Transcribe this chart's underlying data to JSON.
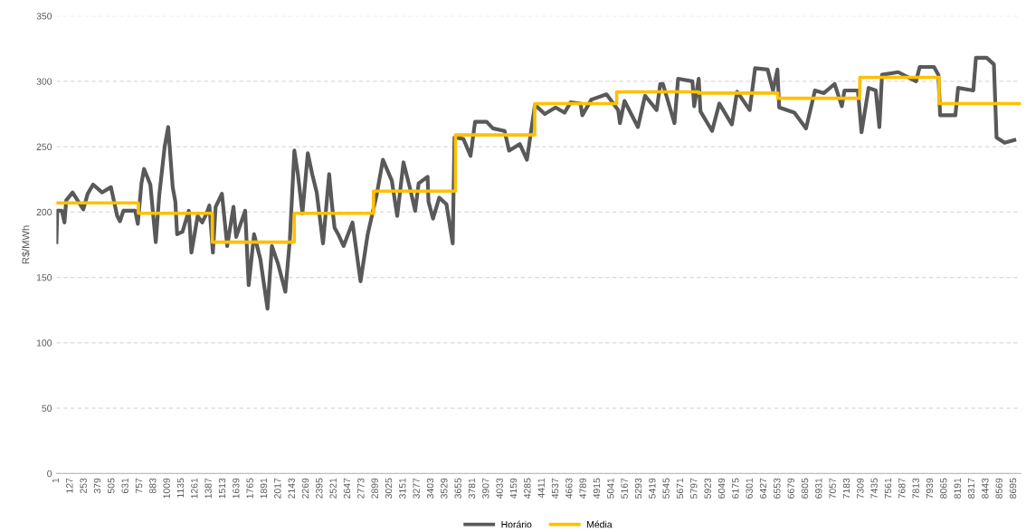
{
  "chart_data": {
    "type": "line",
    "ylabel": "R$/MWh",
    "xlim": [
      1,
      8760
    ],
    "ylim": [
      0,
      350
    ],
    "yticks": [
      0,
      50,
      100,
      150,
      200,
      250,
      300,
      350
    ],
    "xticks": [
      1,
      127,
      253,
      379,
      505,
      631,
      757,
      883,
      1009,
      1135,
      1261,
      1387,
      1513,
      1639,
      1765,
      1891,
      2017,
      2143,
      2269,
      2395,
      2521,
      2647,
      2773,
      2899,
      3025,
      3151,
      3277,
      3403,
      3529,
      3655,
      3781,
      3907,
      4033,
      4159,
      4285,
      4411,
      4537,
      4663,
      4789,
      4915,
      5041,
      5167,
      5293,
      5419,
      5545,
      5671,
      5797,
      5923,
      6049,
      6175,
      6301,
      6427,
      6553,
      6679,
      6805,
      6931,
      7057,
      7183,
      7309,
      7435,
      7561,
      7687,
      7813,
      7939,
      8065,
      8191,
      8317,
      8443,
      8569,
      8695
    ],
    "grid": "y",
    "legend": "bottom",
    "series": [
      {
        "name": "Horário",
        "color": "#595959",
        "x": [
          1,
          9,
          50,
          74,
          90,
          147,
          245,
          285,
          334,
          415,
          496,
          553,
          578,
          610,
          716,
          740,
          773,
          797,
          854,
          903,
          935,
          984,
          1016,
          1057,
          1081,
          1097,
          1146,
          1203,
          1227,
          1284,
          1325,
          1365,
          1390,
          1422,
          1447,
          1504,
          1552,
          1609,
          1633,
          1715,
          1747,
          1796,
          1853,
          1918,
          1958,
          2015,
          2080,
          2121,
          2162,
          2194,
          2235,
          2284,
          2324,
          2365,
          2422,
          2478,
          2503,
          2527,
          2560,
          2609,
          2690,
          2763,
          2828,
          2909,
          2966,
          3047,
          3096,
          3153,
          3210,
          3259,
          3291,
          3372,
          3380,
          3421,
          3478,
          3543,
          3600,
          3616,
          3697,
          3762,
          3803,
          3908,
          3965,
          4071,
          4112,
          4209,
          4274,
          4347,
          4436,
          4534,
          4615,
          4672,
          4761,
          4777,
          4859,
          4997,
          5103,
          5119,
          5160,
          5282,
          5347,
          5452,
          5485,
          5509,
          5614,
          5647,
          5777,
          5793,
          5834,
          5850,
          5956,
          6021,
          6135,
          6183,
          6297,
          6346,
          6460,
          6509,
          6549,
          6565,
          6703,
          6809,
          6890,
          6971,
          7069,
          7134,
          7158,
          7280,
          7313,
          7377,
          7442,
          7475,
          7499,
          7646,
          7808,
          7841,
          7971,
          8011,
          8027,
          8165,
          8190,
          8328,
          8352,
          8450,
          8515,
          8539,
          8612,
          8701
        ],
        "values": [
          177,
          201,
          201,
          192,
          209,
          215,
          202,
          214,
          221,
          215,
          219,
          197,
          193,
          201,
          201,
          191,
          222,
          233,
          221,
          177,
          213,
          250,
          265,
          219,
          208,
          183,
          185,
          201,
          169,
          197,
          192,
          199,
          205,
          169,
          204,
          214,
          174,
          204,
          181,
          201,
          144,
          183,
          164,
          126,
          174,
          160,
          139,
          179,
          247,
          229,
          199,
          245,
          229,
          215,
          176,
          229,
          206,
          188,
          183,
          174,
          192,
          147,
          183,
          213,
          240,
          224,
          197,
          238,
          219,
          201,
          222,
          227,
          208,
          195,
          211,
          206,
          176,
          257,
          256,
          243,
          269,
          269,
          264,
          262,
          247,
          252,
          240,
          282,
          275,
          280,
          276,
          284,
          283,
          274,
          286,
          290,
          278,
          268,
          285,
          265,
          289,
          278,
          298,
          298,
          268,
          302,
          300,
          281,
          302,
          277,
          262,
          283,
          267,
          292,
          278,
          310,
          309,
          293,
          309,
          280,
          276,
          264,
          293,
          291,
          298,
          281,
          293,
          293,
          261,
          295,
          293,
          265,
          305,
          307,
          300,
          311,
          311,
          305,
          274,
          274,
          295,
          293,
          318,
          318,
          313,
          257,
          253,
          255
        ]
      },
      {
        "name": "Média",
        "type": "step",
        "color": "#ffc000",
        "x": [
          1,
          745,
          1417,
          2161,
          2881,
          3625,
          4345,
          5089,
          5833,
          6553,
          7297,
          8017,
          8760
        ],
        "values": [
          207,
          199,
          177,
          199,
          216,
          259,
          283,
          292,
          291,
          287,
          303,
          283,
          283
        ]
      }
    ]
  }
}
